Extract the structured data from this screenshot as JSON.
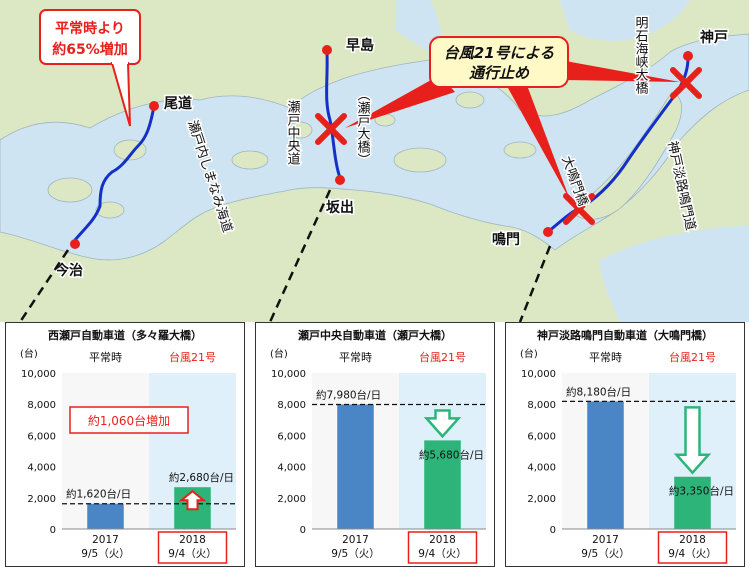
{
  "map": {
    "callout_increase": [
      "平常時より",
      "約65%増加"
    ],
    "callout_closure": [
      "台風21号による",
      "通行止め"
    ],
    "places": {
      "onomichi": "尾道",
      "imabari": "今治",
      "hayashima": "早島",
      "sakaide": "坂出",
      "naruto": "鳴門",
      "kobe": "神戸"
    },
    "routes": {
      "shimanami": "瀬戸内しまなみ海道",
      "setochuo": "瀬戸中央道",
      "setoohashi": "（瀬戸大橋）",
      "akashi": "明石海峡大橋",
      "kobe_awaji": "神戸淡路鳴門道",
      "onaruto": "大鳴門橋"
    },
    "colors": {
      "sea": "#cfe4f2",
      "land": "#dce8c4",
      "route": "#1430c8",
      "closure": "#e8201c"
    }
  },
  "chart_data": [
    {
      "type": "bar",
      "title": "西瀬戸自動車道（多々羅大橋）",
      "ylabel": "(台)",
      "ylim": [
        0,
        10000
      ],
      "yticks": [
        "10,000",
        "8,000",
        "6,000",
        "4,000",
        "2,000",
        "0"
      ],
      "ytick_values": [
        10000,
        8000,
        6000,
        4000,
        2000,
        0
      ],
      "header_left": "平常時",
      "header_right": "台風21号",
      "categories": [
        "2017\n9/5（火）",
        "2018\n9/4（火）"
      ],
      "cat_year": [
        "2017",
        "2018"
      ],
      "cat_date": [
        "9/5（火）",
        "9/4（火）"
      ],
      "values": [
        1620,
        2680
      ],
      "value_labels": [
        "約1,620台/日",
        "約2,680台/日"
      ],
      "annotation": "約1,060台増加",
      "arrow": "up",
      "colors": [
        "#4a86c5",
        "#2db579"
      ]
    },
    {
      "type": "bar",
      "title": "瀬戸中央自動車道（瀬戸大橋）",
      "ylabel": "(台)",
      "ylim": [
        0,
        10000
      ],
      "yticks": [
        "10,000",
        "8,000",
        "6,000",
        "4,000",
        "2,000",
        "0"
      ],
      "ytick_values": [
        10000,
        8000,
        6000,
        4000,
        2000,
        0
      ],
      "header_left": "平常時",
      "header_right": "台風21号",
      "cat_year": [
        "2017",
        "2018"
      ],
      "cat_date": [
        "9/5（火）",
        "9/4（火）"
      ],
      "values": [
        7980,
        5680
      ],
      "value_labels": [
        "約7,980台/日",
        "約5,680台/日"
      ],
      "annotation": "",
      "arrow": "down",
      "colors": [
        "#4a86c5",
        "#2db579"
      ]
    },
    {
      "type": "bar",
      "title": "神戸淡路鳴門自動車道（大鳴門橋）",
      "ylabel": "(台)",
      "ylim": [
        0,
        10000
      ],
      "yticks": [
        "10,000",
        "8,000",
        "6,000",
        "4,000",
        "2,000",
        "0"
      ],
      "ytick_values": [
        10000,
        8000,
        6000,
        4000,
        2000,
        0
      ],
      "header_left": "平常時",
      "header_right": "台風21号",
      "cat_year": [
        "2017",
        "2018"
      ],
      "cat_date": [
        "9/5（火）",
        "9/4（火）"
      ],
      "values": [
        8180,
        3350
      ],
      "value_labels": [
        "約8,180台/日",
        "約3,350台/日"
      ],
      "annotation": "",
      "arrow": "down",
      "colors": [
        "#4a86c5",
        "#2db579"
      ]
    }
  ]
}
